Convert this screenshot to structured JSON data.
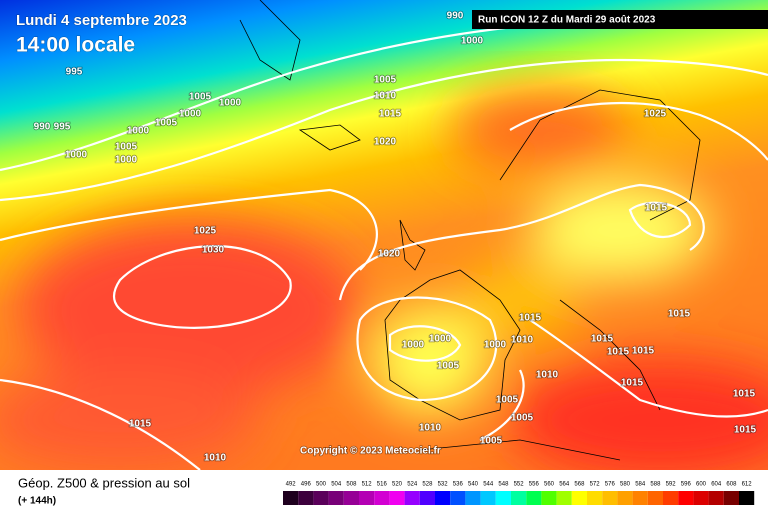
{
  "header": {
    "date": "Lundi 4 septembre 2023",
    "time": "14:00 locale",
    "run": "Run ICON 12 Z du Mardi 29 août 2023"
  },
  "copyright": "Copyright © 2023 Meteociel.fr",
  "footer": {
    "title": "Géop. Z500 & pression au sol",
    "lead": "(+ 144h)"
  },
  "isobar_labels": [
    990,
    995,
    990,
    995,
    1000,
    1005,
    1000,
    1000,
    1005,
    1000,
    1005,
    1000,
    1000,
    1005,
    1010,
    1015,
    1020,
    1025,
    1030,
    1025,
    1015,
    1020,
    1000,
    1000,
    1005,
    1000,
    1015,
    1010,
    1010,
    1015,
    1015,
    1015,
    1015,
    1005,
    1005,
    1010,
    1005,
    1015,
    1010,
    1015,
    1015,
    1015
  ],
  "scale": {
    "values": [
      492,
      496,
      500,
      504,
      508,
      512,
      516,
      520,
      524,
      528,
      532,
      536,
      540,
      544,
      548,
      552,
      556,
      560,
      564,
      568,
      572,
      576,
      580,
      584,
      588,
      592,
      596,
      600,
      604,
      608,
      612
    ],
    "colors": [
      "#1e001e",
      "#3c003c",
      "#5a005a",
      "#780078",
      "#960096",
      "#b400b4",
      "#d200d2",
      "#f000f0",
      "#9600ff",
      "#5000ff",
      "#0000ff",
      "#0050ff",
      "#0096ff",
      "#00c8ff",
      "#00ffff",
      "#00ffa0",
      "#00ff50",
      "#50ff00",
      "#a0ff00",
      "#ffff00",
      "#ffdc00",
      "#ffbe00",
      "#ffa000",
      "#ff8200",
      "#ff6400",
      "#ff3c00",
      "#ff0000",
      "#dc0000",
      "#b40000",
      "#780000",
      "#000000"
    ]
  }
}
